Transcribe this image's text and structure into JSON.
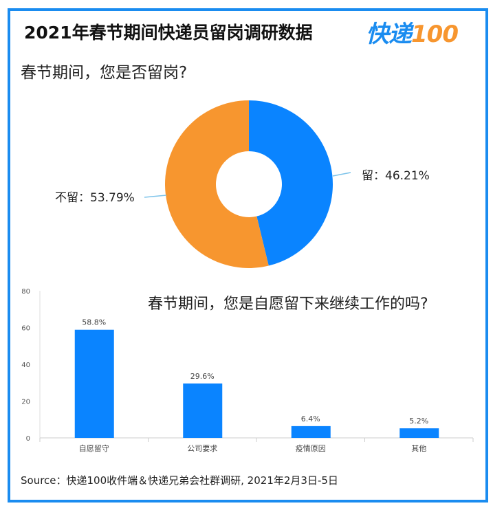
{
  "title": "2021年春节期间快递员留岗调研数据",
  "logo": {
    "text": "快递",
    "num": "100"
  },
  "source": "Source：快递100收件端＆快递兄弟会社群调研, 2021年2月3日-5日",
  "chart_data": [
    {
      "type": "pie",
      "title": "春节期间，您是否留岗?",
      "donut": true,
      "slices": [
        {
          "label": "留",
          "value": 46.21,
          "text": "留：46.21%",
          "color": "#0a84ff"
        },
        {
          "label": "不留",
          "value": 53.79,
          "text": "不留：53.79%",
          "color": "#f7962f"
        }
      ]
    },
    {
      "type": "bar",
      "title": "春节期间，您是自愿留下来继续工作的吗?",
      "categories": [
        "自愿留守",
        "公司要求",
        "疫情原因",
        "其他"
      ],
      "values": [
        58.8,
        29.6,
        6.4,
        5.2
      ],
      "labels": [
        "58.8%",
        "29.6%",
        "6.4%",
        "5.2%"
      ],
      "ylim": [
        0,
        80
      ],
      "yticks": [
        "0",
        "20",
        "40",
        "60",
        "80"
      ],
      "color": "#0a84ff"
    }
  ]
}
